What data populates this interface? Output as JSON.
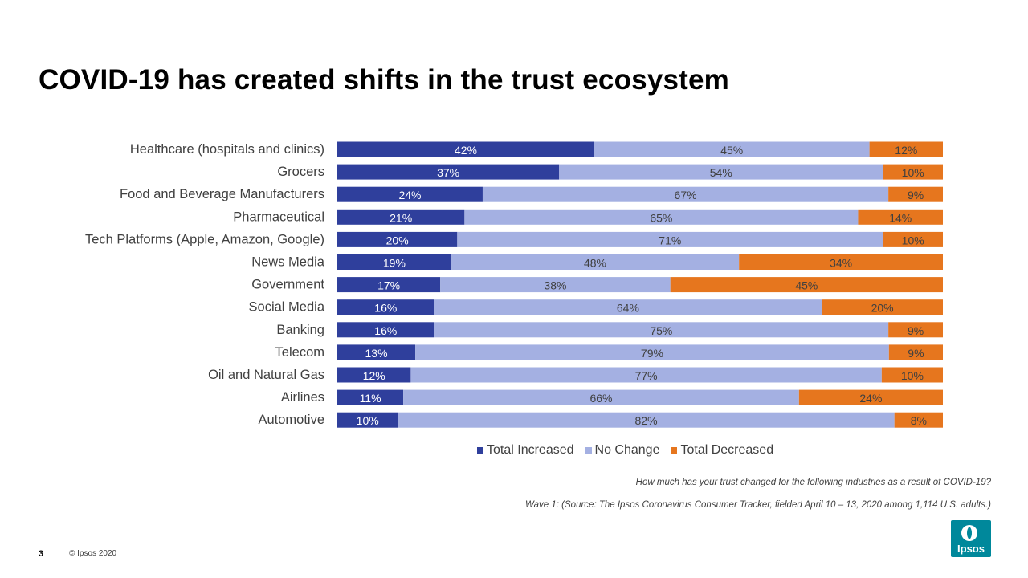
{
  "page": {
    "title": "COVID-19 has created shifts in the trust ecosystem",
    "question_note": "How much has your trust changed for the following industries as a result of COVID-19?",
    "source_note": "Wave 1: (Source: The Ipsos Coronavirus Consumer Tracker, fielded April 10 – 13, 2020 among 1,114 U.S. adults.)",
    "page_number": "3",
    "copyright": "© Ipsos 2020",
    "logo_text": "Ipsos"
  },
  "colors": {
    "increased": "#2f3f9c",
    "no_change": "#a4b0e2",
    "decreased": "#e6761e",
    "logo": "#00889b"
  },
  "chart_data": {
    "type": "bar",
    "orientation": "horizontal",
    "stacked": true,
    "stacking": "100%",
    "categories": [
      "Healthcare (hospitals and clinics)",
      "Grocers",
      "Food and Beverage Manufacturers",
      "Pharmaceutical",
      "Tech Platforms (Apple, Amazon, Google)",
      "News Media",
      "Government",
      "Social Media",
      "Banking",
      "Telecom",
      "Oil and Natural Gas",
      "Airlines",
      "Automotive"
    ],
    "series": [
      {
        "name": "Total Increased",
        "values": [
          42,
          37,
          24,
          21,
          20,
          19,
          17,
          16,
          16,
          13,
          12,
          11,
          10
        ]
      },
      {
        "name": "No Change",
        "values": [
          45,
          54,
          67,
          65,
          71,
          48,
          38,
          64,
          75,
          79,
          77,
          66,
          82
        ]
      },
      {
        "name": "Total Decreased",
        "values": [
          12,
          10,
          9,
          14,
          10,
          34,
          45,
          20,
          9,
          9,
          10,
          24,
          8
        ]
      }
    ],
    "value_suffix": "%",
    "legend_position": "bottom",
    "grid": false
  }
}
